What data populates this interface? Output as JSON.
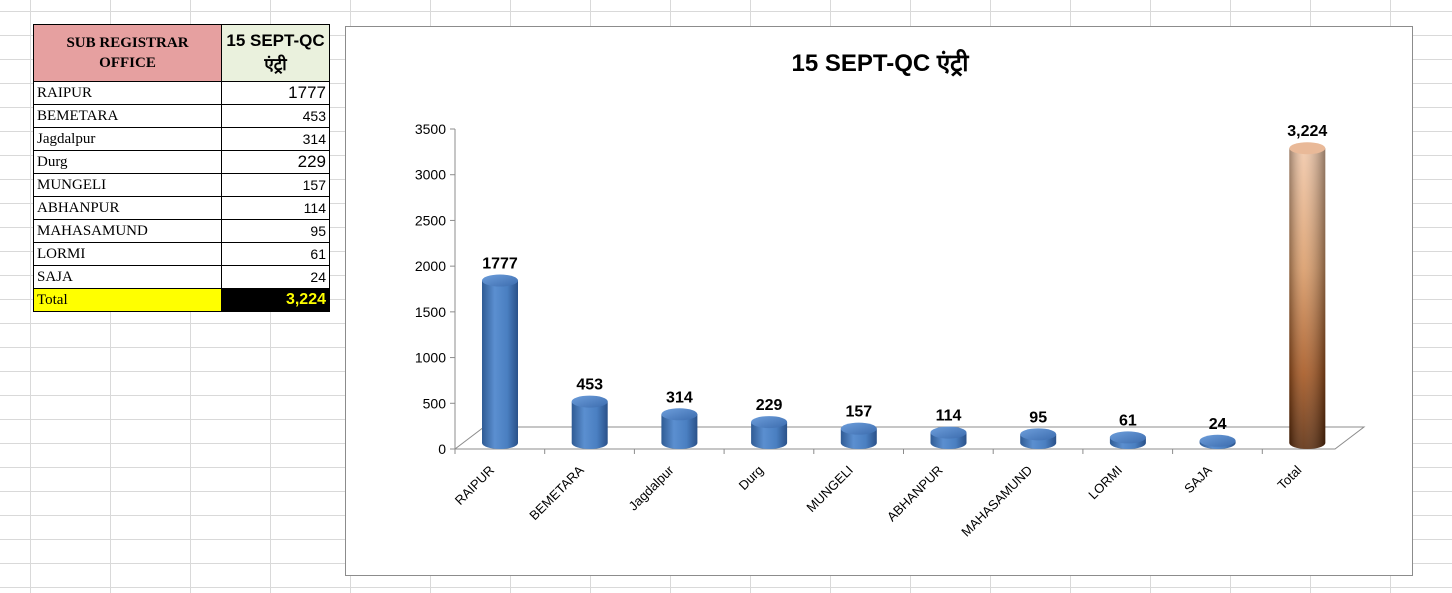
{
  "table": {
    "header_office": "SUB REGISTRAR OFFICE",
    "header_date": "15 SEPT-QC एंट्री",
    "rows": [
      {
        "name": "RAIPUR",
        "value": "1777"
      },
      {
        "name": "BEMETARA",
        "value": "453"
      },
      {
        "name": "Jagdalpur",
        "value": "314"
      },
      {
        "name": "Durg",
        "value": "229"
      },
      {
        "name": "MUNGELI",
        "value": "157"
      },
      {
        "name": "ABHANPUR",
        "value": "114"
      },
      {
        "name": "MAHASAMUND",
        "value": "95"
      },
      {
        "name": "LORMI",
        "value": "61"
      },
      {
        "name": "SAJA",
        "value": "24"
      }
    ],
    "total_label": "Total",
    "total_value": "3,224"
  },
  "chart_data": {
    "type": "bar",
    "title": "15 SEPT-QC एंट्री",
    "categories": [
      "RAIPUR",
      "BEMETARA",
      "Jagdalpur",
      "Durg",
      "MUNGELI",
      "ABHANPUR",
      "MAHASAMUND",
      "LORMI",
      "SAJA",
      "Total"
    ],
    "values": [
      1777,
      453,
      314,
      229,
      157,
      114,
      95,
      61,
      24,
      3224
    ],
    "data_labels": [
      "1777",
      "453",
      "314",
      "229",
      "157",
      "114",
      "95",
      "61",
      "24",
      "3,224"
    ],
    "ylim": [
      0,
      3500
    ],
    "yticks": [
      "0",
      "500",
      "1000",
      "1500",
      "2000",
      "2500",
      "3000",
      "3500"
    ],
    "xlabel": "",
    "ylabel": "",
    "legend": "none",
    "bar_shape": "cylinder",
    "colors": {
      "bar": "#4f81bd",
      "total_bar": "#c87a4a"
    }
  }
}
